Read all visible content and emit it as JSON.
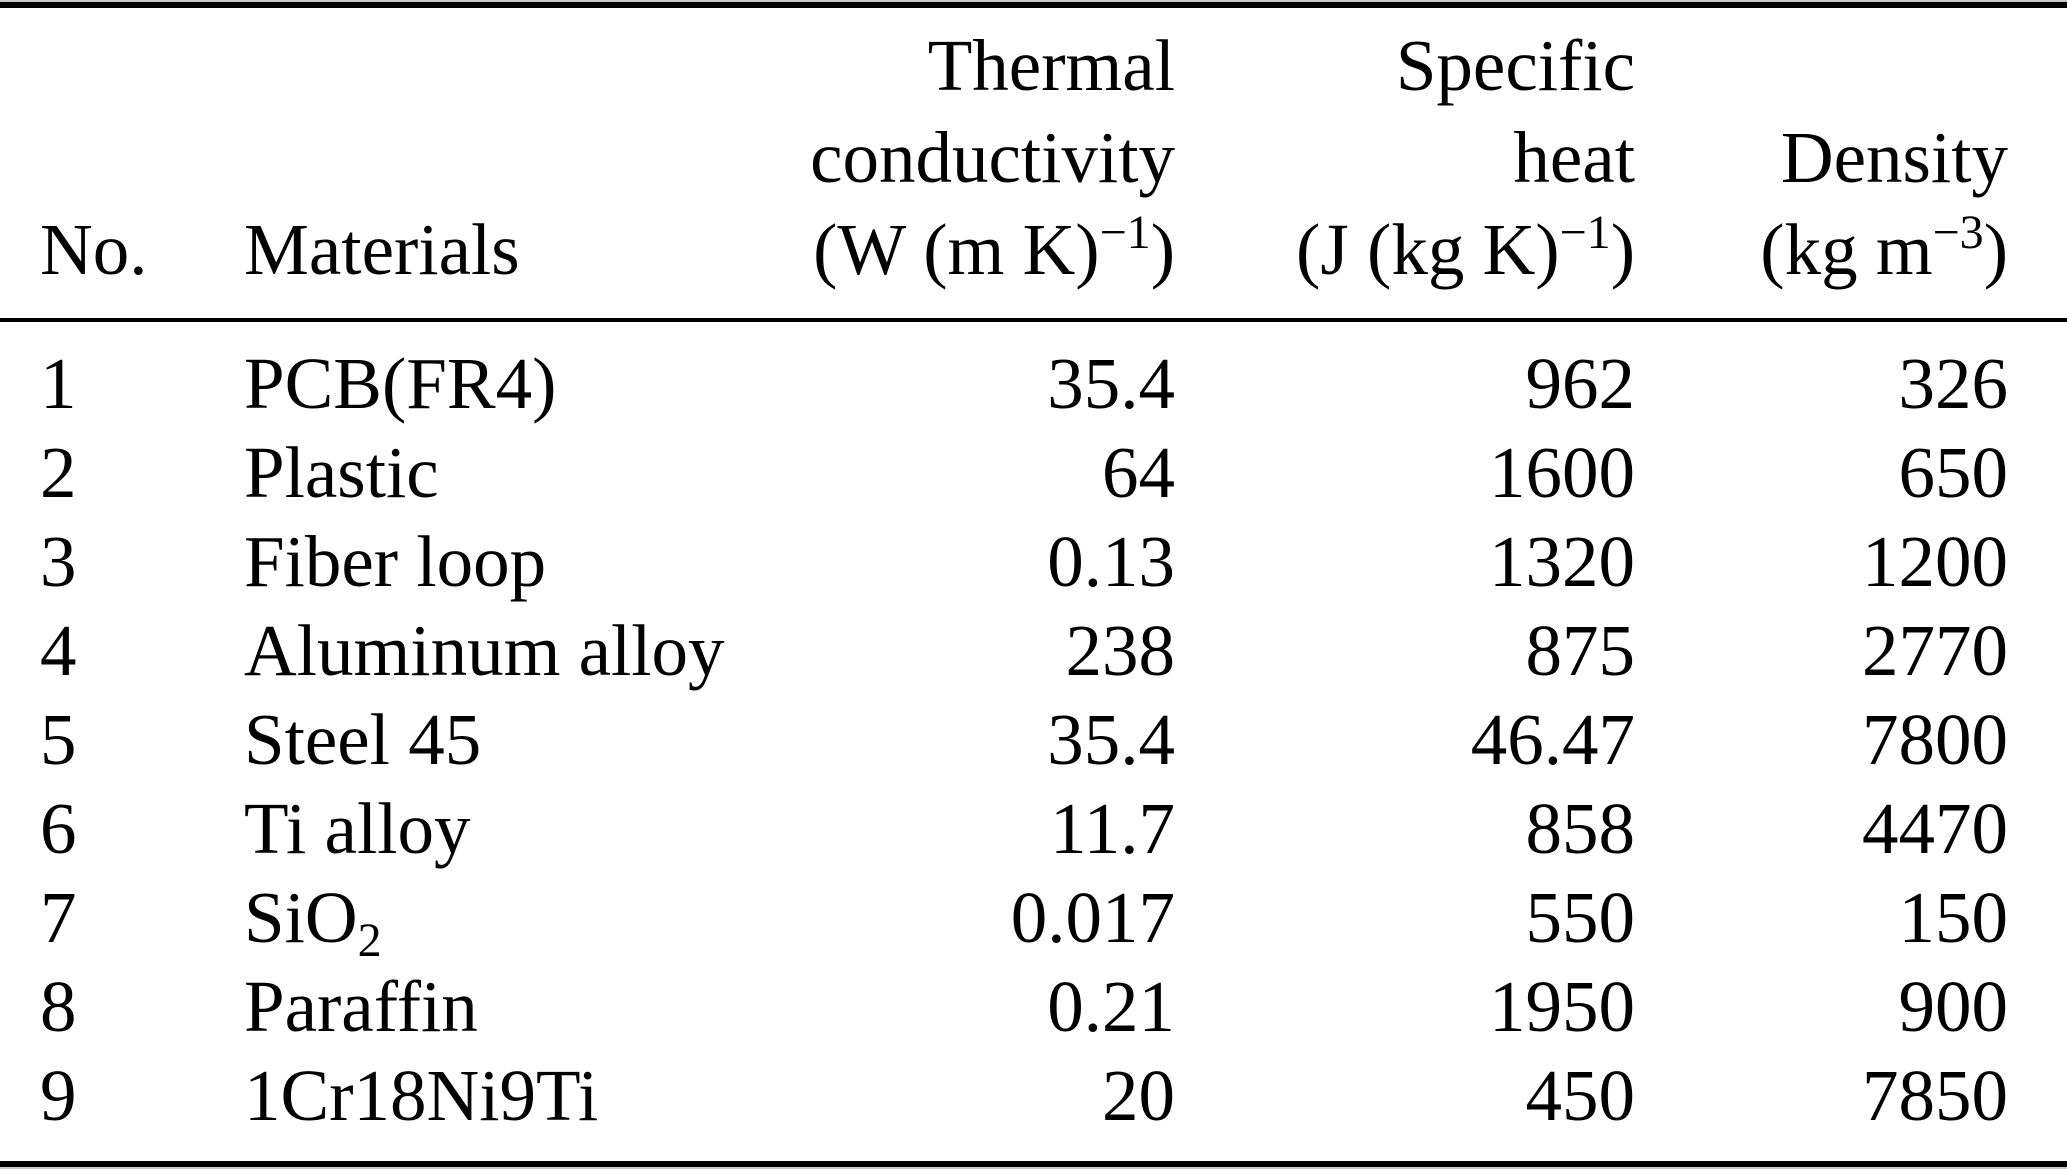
{
  "table": {
    "header": {
      "no": "No.",
      "materials": "Materials",
      "thermal_conductivity": {
        "line1": "Thermal",
        "line2": "conductivity",
        "unit_pre": "(W (m K)",
        "unit_sup": "−1",
        "unit_post": ")"
      },
      "specific_heat": {
        "line1": "Specific",
        "line2": "heat",
        "unit_pre": "(J (kg K)",
        "unit_sup": "−1",
        "unit_post": ")"
      },
      "density": {
        "line1": "Density",
        "unit_pre": "(kg m",
        "unit_sup": "−3",
        "unit_post": ")"
      }
    },
    "rows": [
      {
        "no": "1",
        "material": "PCB(FR4)",
        "material_sub": "",
        "thermal_conductivity": "35.4",
        "specific_heat": "962",
        "density": "326"
      },
      {
        "no": "2",
        "material": "Plastic",
        "material_sub": "",
        "thermal_conductivity": "64",
        "specific_heat": "1600",
        "density": "650"
      },
      {
        "no": "3",
        "material": "Fiber loop",
        "material_sub": "",
        "thermal_conductivity": "0.13",
        "specific_heat": "1320",
        "density": "1200"
      },
      {
        "no": "4",
        "material": "Aluminum alloy",
        "material_sub": "",
        "thermal_conductivity": "238",
        "specific_heat": "875",
        "density": "2770"
      },
      {
        "no": "5",
        "material": "Steel 45",
        "material_sub": "",
        "thermal_conductivity": "35.4",
        "specific_heat": "46.47",
        "density": "7800"
      },
      {
        "no": "6",
        "material": "Ti alloy",
        "material_sub": "",
        "thermal_conductivity": "11.7",
        "specific_heat": "858",
        "density": "4470"
      },
      {
        "no": "7",
        "material": "SiO",
        "material_sub": "2",
        "thermal_conductivity": "0.017",
        "specific_heat": "550",
        "density": "150"
      },
      {
        "no": "8",
        "material": "Paraffin",
        "material_sub": "",
        "thermal_conductivity": "0.21",
        "specific_heat": "1950",
        "density": "900"
      },
      {
        "no": "9",
        "material": "1Cr18Ni9Ti",
        "material_sub": "",
        "thermal_conductivity": "20",
        "specific_heat": "450",
        "density": "7850"
      }
    ],
    "colors": {
      "text": "#000000",
      "background": "#ffffff",
      "rule": "#000000"
    }
  }
}
